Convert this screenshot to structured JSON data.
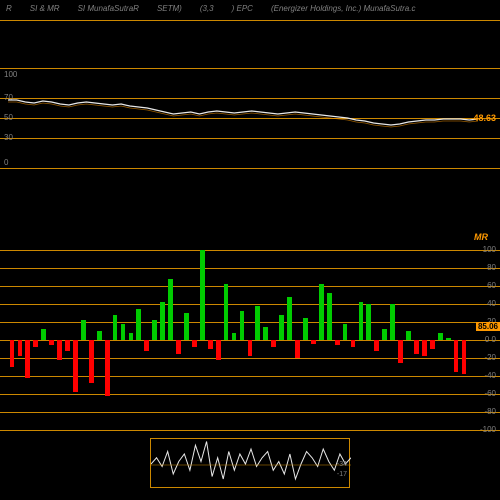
{
  "header": {
    "col1": "R",
    "col2": "SI & MR",
    "col3": "SI MunafaSutraR",
    "col4": "SETM)",
    "col5": "(3,3",
    "col6": ") EPC",
    "col7": "(Energizer Holdings, Inc.) MunafaSutra.c"
  },
  "upper": {
    "gridlines": [
      0,
      30,
      50,
      70,
      100
    ],
    "grid_color": "#cc8800",
    "rsi_points": [
      68,
      68,
      66,
      65,
      67,
      66,
      64,
      63,
      65,
      66,
      65,
      64,
      63,
      64,
      62,
      61,
      60,
      58,
      56,
      54,
      55,
      56,
      54,
      56,
      57,
      56,
      55,
      56,
      57,
      56,
      55,
      54,
      55,
      56,
      55,
      54,
      53,
      52,
      51,
      50,
      48,
      47,
      45,
      44,
      43,
      44,
      46,
      47,
      48,
      48,
      49,
      49,
      49,
      48,
      49
    ],
    "rsi_value": "48.63",
    "line_color": "#e8e8e8",
    "fill_color": "#ff9900"
  },
  "lower": {
    "label": "MR",
    "gridlines": [
      -100,
      -80,
      -60,
      -40,
      -20,
      0,
      20,
      40,
      60,
      80,
      100
    ],
    "grid_color": "#cc8800",
    "zero_label": "0  0",
    "value": "85.06",
    "bars": [
      -30,
      -18,
      -42,
      -8,
      12,
      -5,
      -22,
      -12,
      -58,
      22,
      -48,
      10,
      -62,
      28,
      18,
      8,
      35,
      -12,
      22,
      42,
      68,
      -15,
      30,
      -8,
      100,
      -10,
      -22,
      62,
      8,
      32,
      -18,
      38,
      15,
      -8,
      28,
      48,
      -20,
      25,
      -4,
      62,
      52,
      -5,
      18,
      -8,
      42,
      40,
      -12,
      12,
      40,
      -25,
      10,
      -15,
      -18,
      -10,
      8,
      2,
      -35,
      -38
    ],
    "pos_color": "#00cc00",
    "neg_color": "#ff0000"
  },
  "mini": {
    "points": [
      20,
      25,
      18,
      30,
      12,
      22,
      28,
      15,
      35,
      22,
      38,
      10,
      25,
      8,
      30,
      15,
      28,
      20,
      32,
      18,
      25,
      30,
      15,
      22,
      12,
      28,
      8,
      20,
      30,
      25,
      18,
      32,
      22,
      15,
      28,
      20,
      25
    ],
    "labels": [
      "-34",
      "-17"
    ],
    "line_color": "#e8e8e8"
  }
}
